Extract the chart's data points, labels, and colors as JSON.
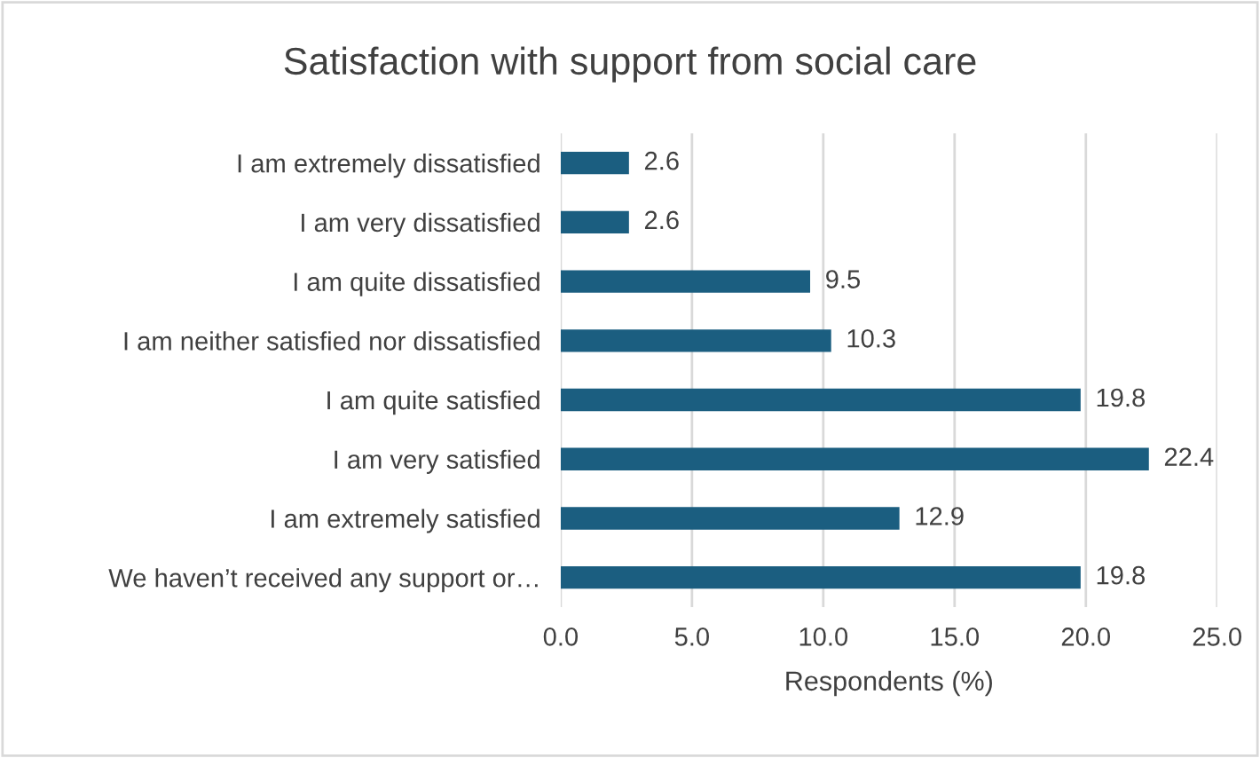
{
  "chart_data": {
    "type": "bar",
    "orientation": "horizontal",
    "title": "Satisfaction with support from social care",
    "xlabel": "Respondents (%)",
    "categories": [
      "I am extremely dissatisfied",
      "I am very dissatisfied",
      "I am quite dissatisfied",
      "I am neither satisfied nor dissatisfied",
      "I am quite satisfied",
      "I am very satisfied",
      "I am extremely satisfied",
      "We haven’t received any support or…"
    ],
    "values": [
      2.6,
      2.6,
      9.5,
      10.3,
      19.8,
      22.4,
      12.9,
      19.8
    ],
    "color": "#1b5e80",
    "xlim": [
      0,
      25
    ],
    "xticks": [
      {
        "value": 0,
        "label": "0.0"
      },
      {
        "value": 5,
        "label": "5.0"
      },
      {
        "value": 10,
        "label": "10.0"
      },
      {
        "value": 15,
        "label": "15.0"
      },
      {
        "value": 20,
        "label": "20.0"
      },
      {
        "value": 25,
        "label": "25.0"
      }
    ],
    "grid": "x",
    "data_labels": true
  }
}
